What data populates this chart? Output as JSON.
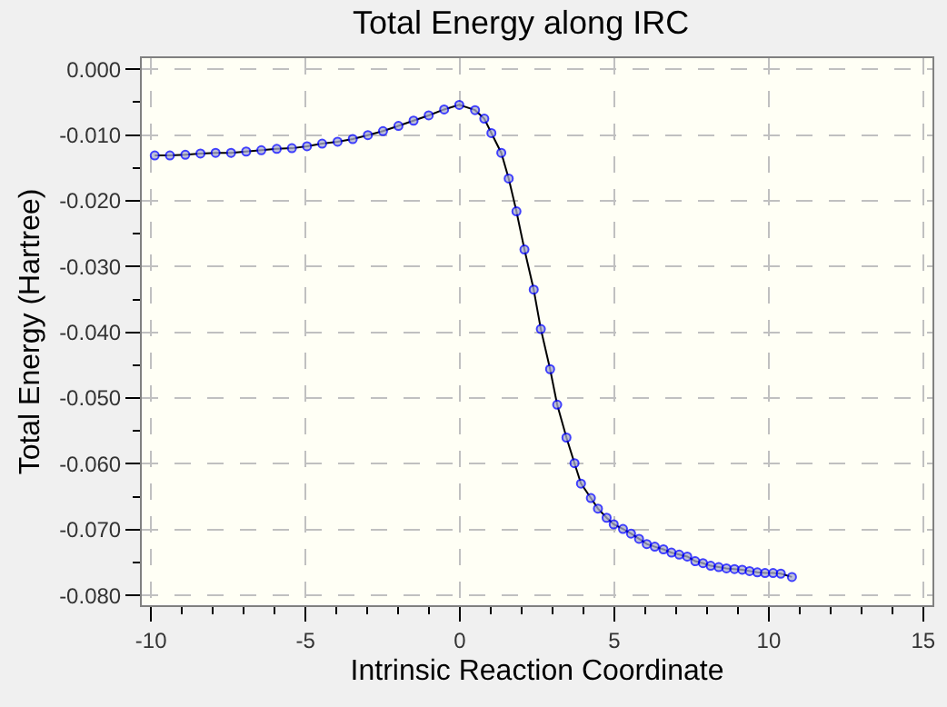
{
  "chart_data": {
    "type": "line",
    "title": "Total Energy along IRC",
    "xlabel": "Intrinsic Reaction Coordinate",
    "ylabel": "Total Energy (Hartree)",
    "xlim": [
      -10.3,
      15.3
    ],
    "xticks": [
      -10,
      -5,
      0,
      5,
      10,
      15
    ],
    "ylim": [
      -0.0815,
      0.0017
    ],
    "yticks": [
      {
        "value": 0,
        "label": "0.000"
      },
      {
        "value": -0.01,
        "label": "-0.010"
      },
      {
        "value": -0.02,
        "label": "-0.020"
      },
      {
        "value": -0.03,
        "label": "-0.030"
      },
      {
        "value": -0.04,
        "label": "-0.040"
      },
      {
        "value": -0.05,
        "label": "-0.050"
      },
      {
        "value": -0.06,
        "label": "-0.060"
      },
      {
        "value": -0.07,
        "label": "-0.070"
      },
      {
        "value": -0.08,
        "label": "-0.080"
      }
    ],
    "grid": true,
    "marker": "circle",
    "line_style": "solid",
    "series": [
      {
        "color": "#0000ff",
        "x": [
          -9.88,
          -9.39,
          -8.89,
          -8.4,
          -7.91,
          -7.41,
          -6.92,
          -6.43,
          -5.93,
          -5.44,
          -4.95,
          -4.46,
          -3.96,
          -3.47,
          -2.98,
          -2.49,
          -1.99,
          -1.5,
          -1.01,
          -0.51,
          -0.02,
          0.49,
          0.79,
          1.02,
          1.34,
          1.58,
          1.83,
          2.09,
          2.39,
          2.62,
          2.92,
          3.15,
          3.45,
          3.71,
          3.92,
          4.24,
          4.47,
          4.75,
          4.98,
          5.28,
          5.54,
          5.8,
          6.05,
          6.31,
          6.59,
          6.85,
          7.1,
          7.36,
          7.62,
          7.87,
          8.12,
          8.38,
          8.63,
          8.89,
          9.14,
          9.38,
          9.63,
          9.88,
          10.14,
          10.39,
          10.75
        ],
        "values": [
          -0.0131,
          -0.0131,
          -0.013,
          -0.0128,
          -0.0127,
          -0.0127,
          -0.0125,
          -0.0123,
          -0.0121,
          -0.012,
          -0.0117,
          -0.0113,
          -0.011,
          -0.0106,
          -0.01,
          -0.0094,
          -0.0086,
          -0.0078,
          -0.007,
          -0.0061,
          -0.0054,
          -0.0062,
          -0.0075,
          -0.0097,
          -0.0127,
          -0.0166,
          -0.0216,
          -0.0274,
          -0.0335,
          -0.0395,
          -0.0456,
          -0.051,
          -0.056,
          -0.0599,
          -0.063,
          -0.0652,
          -0.0668,
          -0.0682,
          -0.0692,
          -0.0699,
          -0.0706,
          -0.0714,
          -0.0722,
          -0.0726,
          -0.073,
          -0.0735,
          -0.0738,
          -0.0741,
          -0.0748,
          -0.0751,
          -0.0755,
          -0.0757,
          -0.0759,
          -0.076,
          -0.0761,
          -0.0763,
          -0.0765,
          -0.0766,
          -0.0766,
          -0.0767,
          -0.0772
        ]
      }
    ]
  }
}
